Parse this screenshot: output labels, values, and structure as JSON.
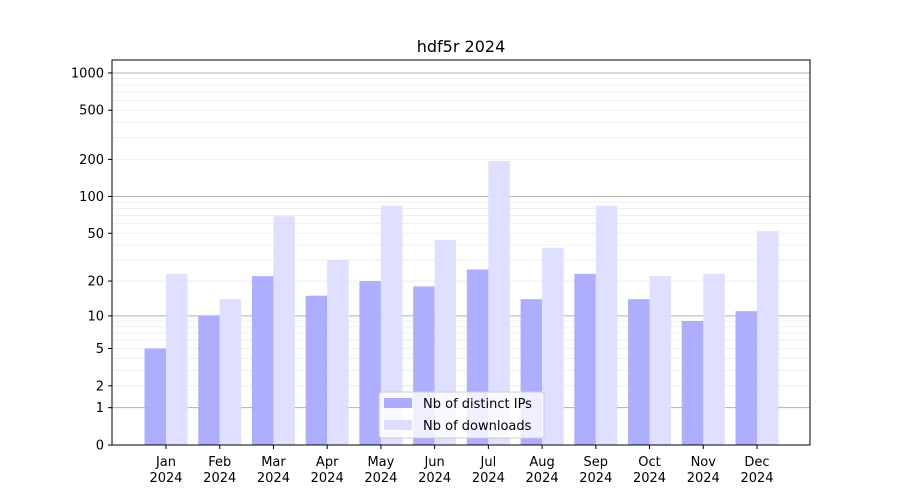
{
  "chart_data": {
    "type": "bar",
    "title": "hdf5r 2024",
    "xlabel": "",
    "ylabel": "",
    "yscale": "symlog (log10(1+y))",
    "ylim": [
      0,
      1270
    ],
    "yticks": [
      0,
      1,
      2,
      5,
      10,
      20,
      50,
      100,
      200,
      500,
      1000
    ],
    "grid": true,
    "legend_position": "bottom-center",
    "categories": [
      "Jan\n2024",
      "Feb\n2024",
      "Mar\n2024",
      "Apr\n2024",
      "May\n2024",
      "Jun\n2024",
      "Jul\n2024",
      "Aug\n2024",
      "Sep\n2024",
      "Oct\n2024",
      "Nov\n2024",
      "Dec\n2024"
    ],
    "series": [
      {
        "name": "Nb of distinct IPs",
        "color": "#aaaaff",
        "values": [
          5,
          10,
          22,
          15,
          20,
          18,
          25,
          14,
          23,
          14,
          9,
          11
        ]
      },
      {
        "name": "Nb of downloads",
        "color": "#ddddff",
        "values": [
          23,
          14,
          69,
          30,
          84,
          44,
          194,
          38,
          84,
          22,
          23,
          52
        ]
      }
    ]
  }
}
